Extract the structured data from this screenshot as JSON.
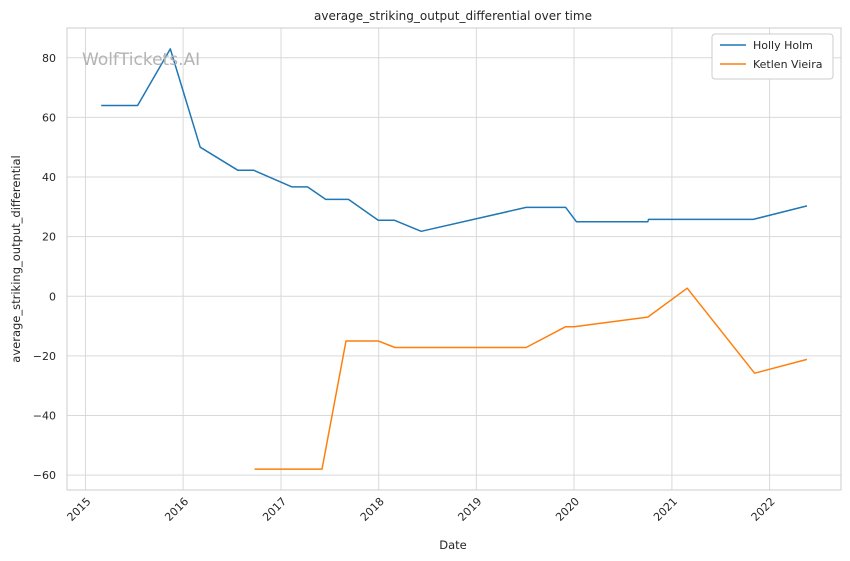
{
  "chart_data": {
    "type": "line",
    "title": "average_striking_output_differential over time",
    "xlabel": "Date",
    "ylabel": "average_striking_output_differential",
    "watermark": "WolfTickets.AI",
    "x_type": "date",
    "xlim": [
      "2014-10-24",
      "2022-09-25"
    ],
    "ylim": [
      -65,
      90
    ],
    "x_ticks": [
      "2015",
      "2016",
      "2017",
      "2018",
      "2019",
      "2020",
      "2021",
      "2022"
    ],
    "y_ticks": [
      80,
      60,
      40,
      20,
      0,
      -20,
      -40,
      -60
    ],
    "y_tick_labels": [
      "80",
      "60",
      "40",
      "20",
      "0",
      "−20",
      "−40",
      "−60"
    ],
    "grid": true,
    "legend_position": "top-right",
    "series": [
      {
        "name": "Holly Holm",
        "color": "#1f77b4",
        "points": [
          {
            "x": "2015-03-01",
            "y": 64
          },
          {
            "x": "2015-07-15",
            "y": 64
          },
          {
            "x": "2015-11-14",
            "y": 83
          },
          {
            "x": "2016-03-05",
            "y": 50
          },
          {
            "x": "2016-07-23",
            "y": 42.3
          },
          {
            "x": "2016-09-20",
            "y": 42.3
          },
          {
            "x": "2017-02-11",
            "y": 36.7
          },
          {
            "x": "2017-04-10",
            "y": 36.7
          },
          {
            "x": "2017-06-17",
            "y": 32.5
          },
          {
            "x": "2017-09-10",
            "y": 32.5
          },
          {
            "x": "2017-12-30",
            "y": 25.5
          },
          {
            "x": "2018-03-01",
            "y": 25.5
          },
          {
            "x": "2018-06-09",
            "y": 21.8
          },
          {
            "x": "2019-07-06",
            "y": 29.8
          },
          {
            "x": "2019-12-01",
            "y": 29.8
          },
          {
            "x": "2020-01-10",
            "y": 25
          },
          {
            "x": "2020-10-03",
            "y": 25
          },
          {
            "x": "2020-10-06",
            "y": 25.8
          },
          {
            "x": "2021-11-01",
            "y": 25.8
          },
          {
            "x": "2022-05-21",
            "y": 30.3
          }
        ]
      },
      {
        "name": "Ketlen Vieira",
        "color": "#ff7f0e",
        "points": [
          {
            "x": "2016-09-24",
            "y": -58
          },
          {
            "x": "2017-06-03",
            "y": -58
          },
          {
            "x": "2017-09-01",
            "y": -15
          },
          {
            "x": "2017-12-30",
            "y": -15
          },
          {
            "x": "2018-03-03",
            "y": -17.2
          },
          {
            "x": "2019-07-06",
            "y": -17.2
          },
          {
            "x": "2019-12-01",
            "y": -10.2
          },
          {
            "x": "2020-01-01",
            "y": -10.2
          },
          {
            "x": "2020-10-03",
            "y": -7
          },
          {
            "x": "2021-02-27",
            "y": 2.7
          },
          {
            "x": "2021-11-06",
            "y": -25.8
          },
          {
            "x": "2022-05-21",
            "y": -21.2
          }
        ]
      }
    ]
  }
}
